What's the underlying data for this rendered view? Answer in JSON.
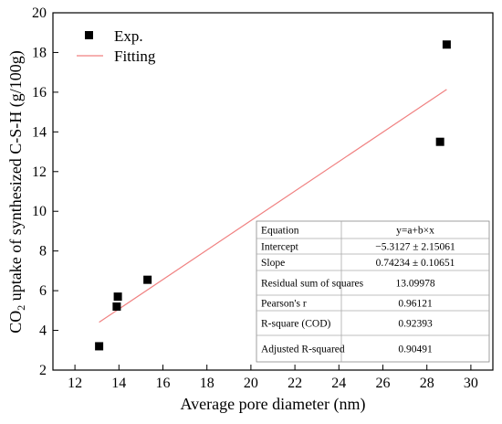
{
  "chart_data": {
    "type": "scatter",
    "xlabel": "Average pore diameter (nm)",
    "ylabel": {
      "prefix": "CO",
      "subscript": "2",
      "suffix": " uptake of synthesized C-S-H  (g/100g)"
    },
    "xlim": [
      11,
      31
    ],
    "ylim": [
      2,
      20
    ],
    "x_ticks": [
      12,
      14,
      16,
      18,
      20,
      22,
      24,
      26,
      28,
      30
    ],
    "y_ticks": [
      2,
      4,
      6,
      8,
      10,
      12,
      14,
      16,
      18,
      20
    ],
    "grid": false,
    "legend_position": "top-left",
    "series": [
      {
        "name": "Exp.",
        "kind": "points",
        "marker": "square",
        "color": "#000000",
        "points": [
          {
            "x": 13.1,
            "y": 3.2
          },
          {
            "x": 13.9,
            "y": 5.2
          },
          {
            "x": 13.95,
            "y": 5.7
          },
          {
            "x": 15.3,
            "y": 6.55
          },
          {
            "x": 28.6,
            "y": 13.5
          },
          {
            "x": 28.9,
            "y": 18.4
          }
        ]
      },
      {
        "name": "Fitting",
        "kind": "line",
        "color": "#f08080",
        "points": [
          {
            "x": 13.1,
            "y": 4.41
          },
          {
            "x": 28.9,
            "y": 16.14
          }
        ]
      }
    ],
    "stats_table": [
      {
        "label": "Equation",
        "value": "y=a+b×x"
      },
      {
        "label": "Intercept",
        "value": "−5.3127 ± 2.15061"
      },
      {
        "label": "Slope",
        "value": "0.74234 ± 0.10651"
      },
      {
        "label": "Residual sum of squares",
        "value": "13.09978"
      },
      {
        "label": "Pearson's r",
        "value": "0.96121"
      },
      {
        "label": "R-square (COD)",
        "value": "0.92393"
      },
      {
        "label": "Adjusted R-squared",
        "value": "0.90491"
      }
    ]
  }
}
